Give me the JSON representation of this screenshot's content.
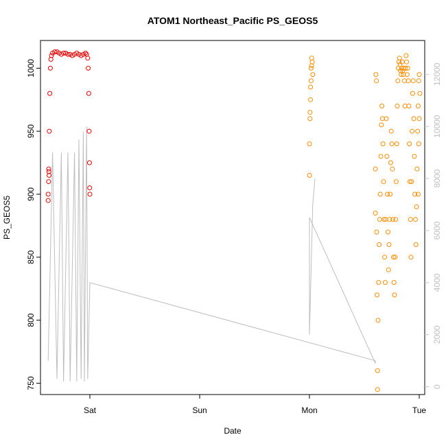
{
  "chart_data": {
    "type": "scatter",
    "title": "ATOM1 Northeast_Pacific PS_GEOS5",
    "xlabel": "Date",
    "ylabel": "PS_GEOS5",
    "x_ticks": [
      {
        "label": "Sat",
        "day": 1
      },
      {
        "label": "Sun",
        "day": 2
      },
      {
        "label": "Mon",
        "day": 3
      },
      {
        "label": "Tue",
        "day": 4
      }
    ],
    "xlim": [
      0.55,
      4.05
    ],
    "ylim": [
      741,
      1022
    ],
    "y_ticks": [
      750,
      800,
      850,
      900,
      950,
      1000
    ],
    "y2_ticks": [
      0,
      2000,
      4000,
      6000,
      8000,
      10000,
      12000
    ],
    "y2lim": [
      -300,
      13300
    ],
    "grid": false,
    "legend": "none",
    "colors": {
      "red_series": "#ee0000",
      "orange_series": "#ff8c00",
      "altitude_line": "#bebebe"
    },
    "series": [
      {
        "color": "red",
        "axis": "left",
        "x": [
          0.62,
          0.62,
          0.625,
          0.63,
          0.635,
          0.64,
          0.645,
          0.65,
          0.66,
          0.68,
          0.7,
          0.72,
          0.74,
          0.76,
          0.78,
          0.8,
          0.82,
          0.84,
          0.86,
          0.88,
          0.9,
          0.92,
          0.94,
          0.96,
          0.97,
          0.98,
          0.985,
          0.99,
          0.993,
          0.996,
          0.998,
          1.0,
          0.624,
          0.626,
          0.628
        ],
        "y": [
          895,
          900,
          920,
          950,
          980,
          1000,
          1007,
          1010,
          1012,
          1013,
          1013,
          1012,
          1011,
          1012,
          1012,
          1011,
          1011,
          1010,
          1011,
          1012,
          1011,
          1010,
          1011,
          1012,
          1011,
          1008,
          1000,
          980,
          950,
          925,
          905,
          900,
          910,
          918,
          915
        ]
      },
      {
        "color": "orange",
        "axis": "left",
        "x": [
          3.0,
          3.0,
          3.005,
          3.01,
          3.015,
          3.02,
          3.025,
          3.03,
          3.005,
          3.01,
          3.015,
          3.02,
          3.6,
          3.6,
          3.605,
          3.61,
          3.612,
          3.615,
          3.62,
          3.62,
          3.625,
          3.63,
          3.635,
          3.64,
          3.645,
          3.65,
          3.655,
          3.66,
          3.665,
          3.67,
          3.675,
          3.68,
          3.685,
          3.69,
          3.695,
          3.7,
          3.705,
          3.71,
          3.715,
          3.72,
          3.725,
          3.73,
          3.735,
          3.74,
          3.745,
          3.75,
          3.755,
          3.76,
          3.765,
          3.77,
          3.775,
          3.78,
          3.785,
          3.79,
          3.795,
          3.8,
          3.805,
          3.81,
          3.815,
          3.82,
          3.825,
          3.83,
          3.835,
          3.84,
          3.845,
          3.85,
          3.855,
          3.86,
          3.865,
          3.87,
          3.875,
          3.88,
          3.885,
          3.89,
          3.895,
          3.9,
          3.905,
          3.91,
          3.915,
          3.92,
          3.925,
          3.93,
          3.935,
          3.94,
          3.945,
          3.95,
          3.955,
          3.96,
          3.965,
          3.97,
          3.975,
          3.98,
          3.985,
          3.99,
          3.995,
          4.0,
          4.005,
          4.0,
          3.995,
          3.99
        ],
        "y": [
          915,
          940,
          965,
          985,
          1000,
          1008,
          1005,
          995,
          960,
          975,
          990,
          1002,
          885,
          920,
          995,
          990,
          870,
          820,
          745,
          760,
          800,
          830,
          860,
          880,
          900,
          930,
          955,
          970,
          960,
          940,
          910,
          880,
          850,
          830,
          880,
          960,
          930,
          900,
          870,
          840,
          860,
          880,
          900,
          925,
          950,
          940,
          920,
          880,
          850,
          830,
          820,
          850,
          880,
          910,
          940,
          970,
          990,
          1000,
          1005,
          1008,
          1003,
          998,
          995,
          1000,
          1005,
          998,
          995,
          1000,
          990,
          970,
          1000,
          1010,
          1005,
          995,
          1000,
          990,
          970,
          940,
          910,
          880,
          850,
          910,
          950,
          980,
          990,
          960,
          930,
          900,
          880,
          860,
          890,
          920,
          950,
          970,
          990,
          995,
          980,
          960,
          940,
          900
        ]
      },
      {
        "color": "gray",
        "axis": "right",
        "x": [
          0.62,
          0.66,
          0.7,
          0.74,
          0.76,
          0.8,
          0.82,
          0.86,
          0.88,
          0.9,
          0.92,
          0.94,
          0.95,
          0.97,
          0.98,
          1.0,
          3.6,
          3.6,
          3.0,
          3.0,
          3.03,
          3.05
        ],
        "y": [
          1000,
          9000,
          300,
          9000,
          200,
          9000,
          200,
          9000,
          200,
          9500,
          300,
          9800,
          200,
          10000,
          300,
          4000,
          1000,
          900,
          6500,
          2000,
          7000,
          8000
        ]
      }
    ]
  }
}
